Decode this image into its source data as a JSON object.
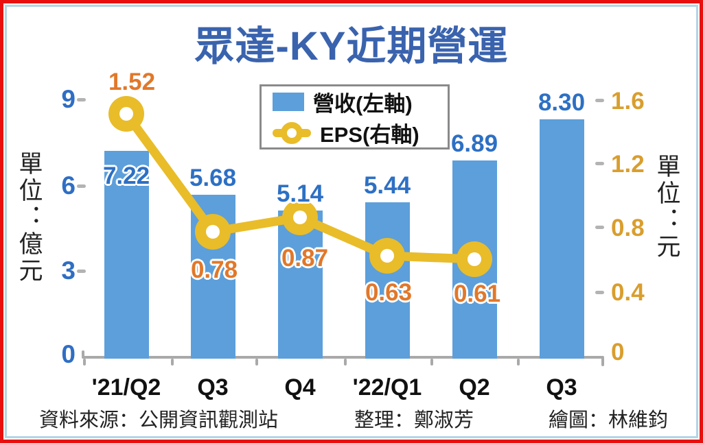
{
  "title": "眾達-KY近期營運",
  "axes": {
    "left": {
      "unit_label": "單位：億元",
      "ticks": [
        "9",
        "6",
        "3",
        "0"
      ]
    },
    "right": {
      "unit_label": "單位：元",
      "ticks": [
        "1.6",
        "1.2",
        "0.8",
        "0.4",
        "0"
      ]
    }
  },
  "legend": {
    "revenue": "營收(左軸)",
    "eps": "EPS(右軸)"
  },
  "footer": {
    "source": "資料來源：公開資訊觀測站",
    "compiler": "整理：鄭淑芳",
    "illustrator": "繪圖：林維鈞"
  },
  "chart_data": {
    "type": "bar",
    "title": "眾達-KY近期營運",
    "categories": [
      "'21/Q2",
      "Q3",
      "Q4",
      "'22/Q1",
      "Q2",
      "Q3"
    ],
    "series": [
      {
        "name": "營收(左軸)",
        "type": "bar",
        "axis": "left",
        "unit": "億元",
        "values": [
          7.22,
          5.68,
          5.14,
          5.44,
          6.89,
          8.3
        ],
        "labels": [
          "7.22",
          "5.68",
          "5.14",
          "5.44",
          "6.89",
          "8.30"
        ],
        "color": "#5c9fdb"
      },
      {
        "name": "EPS(右軸)",
        "type": "line",
        "axis": "right",
        "unit": "元",
        "values": [
          1.52,
          0.78,
          0.87,
          0.63,
          0.61,
          null
        ],
        "labels": [
          "1.52",
          "0.78",
          "0.87",
          "0.63",
          "0.61"
        ],
        "color": "#e9bc29"
      }
    ],
    "left_ylim": [
      0,
      9
    ],
    "right_ylim": [
      0,
      1.6
    ],
    "left_tick_values": [
      0,
      3,
      6,
      9
    ],
    "right_tick_values": [
      0,
      0.4,
      0.8,
      1.2,
      1.6
    ],
    "legend_position": "top-center",
    "grid": false
  },
  "colors": {
    "title_blue": "#3a63ae",
    "bar_blue": "#5c9fdb",
    "value_label_blue": "#2d70c4",
    "axis_tick_blue": "#2f6ec4",
    "line_yellow": "#e9bc29",
    "eps_label_orange": "#e1782a",
    "right_axis_gold": "#d99e2e",
    "axis_gray": "#a9a9a9",
    "border_red": "#e8100f",
    "border_lightblue": "#b5d3e7"
  }
}
